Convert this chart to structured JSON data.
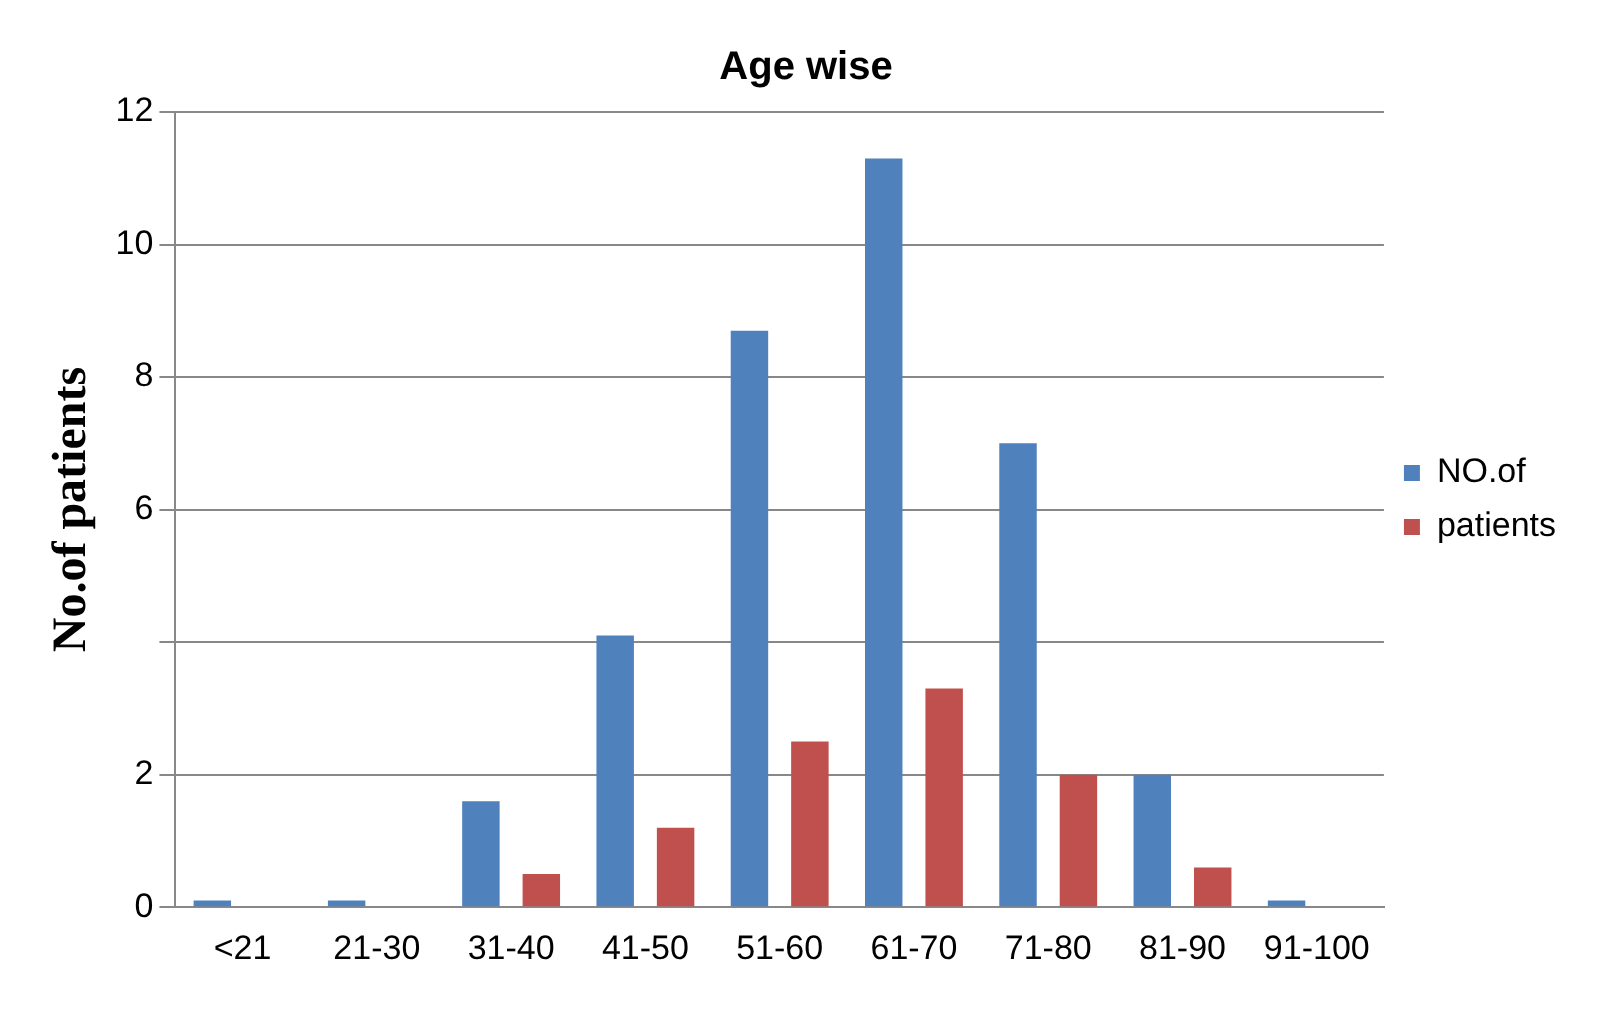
{
  "chart_data": {
    "type": "bar",
    "title": "Age wise",
    "ylabel": "No.of patients",
    "categories": [
      "<21",
      "21-30",
      "31-40",
      "41-50",
      "51-60",
      "61-70",
      "71-80",
      "81-90",
      "91-100"
    ],
    "series": [
      {
        "name": "NO.of",
        "color": "#4f81bd",
        "values": [
          0.1,
          0.1,
          1.6,
          4.1,
          8.7,
          11.3,
          7,
          2,
          0.1
        ]
      },
      {
        "name": "patients",
        "color": "#c0504d",
        "values": [
          0,
          0,
          0.5,
          1.2,
          2.5,
          3.3,
          2,
          0.6,
          0
        ]
      }
    ],
    "ylim": [
      0,
      12
    ],
    "yticks": [
      0,
      2,
      {
        "value": 4,
        "label": null
      },
      6,
      8,
      10,
      12
    ],
    "grid": "y",
    "legend": "right"
  }
}
